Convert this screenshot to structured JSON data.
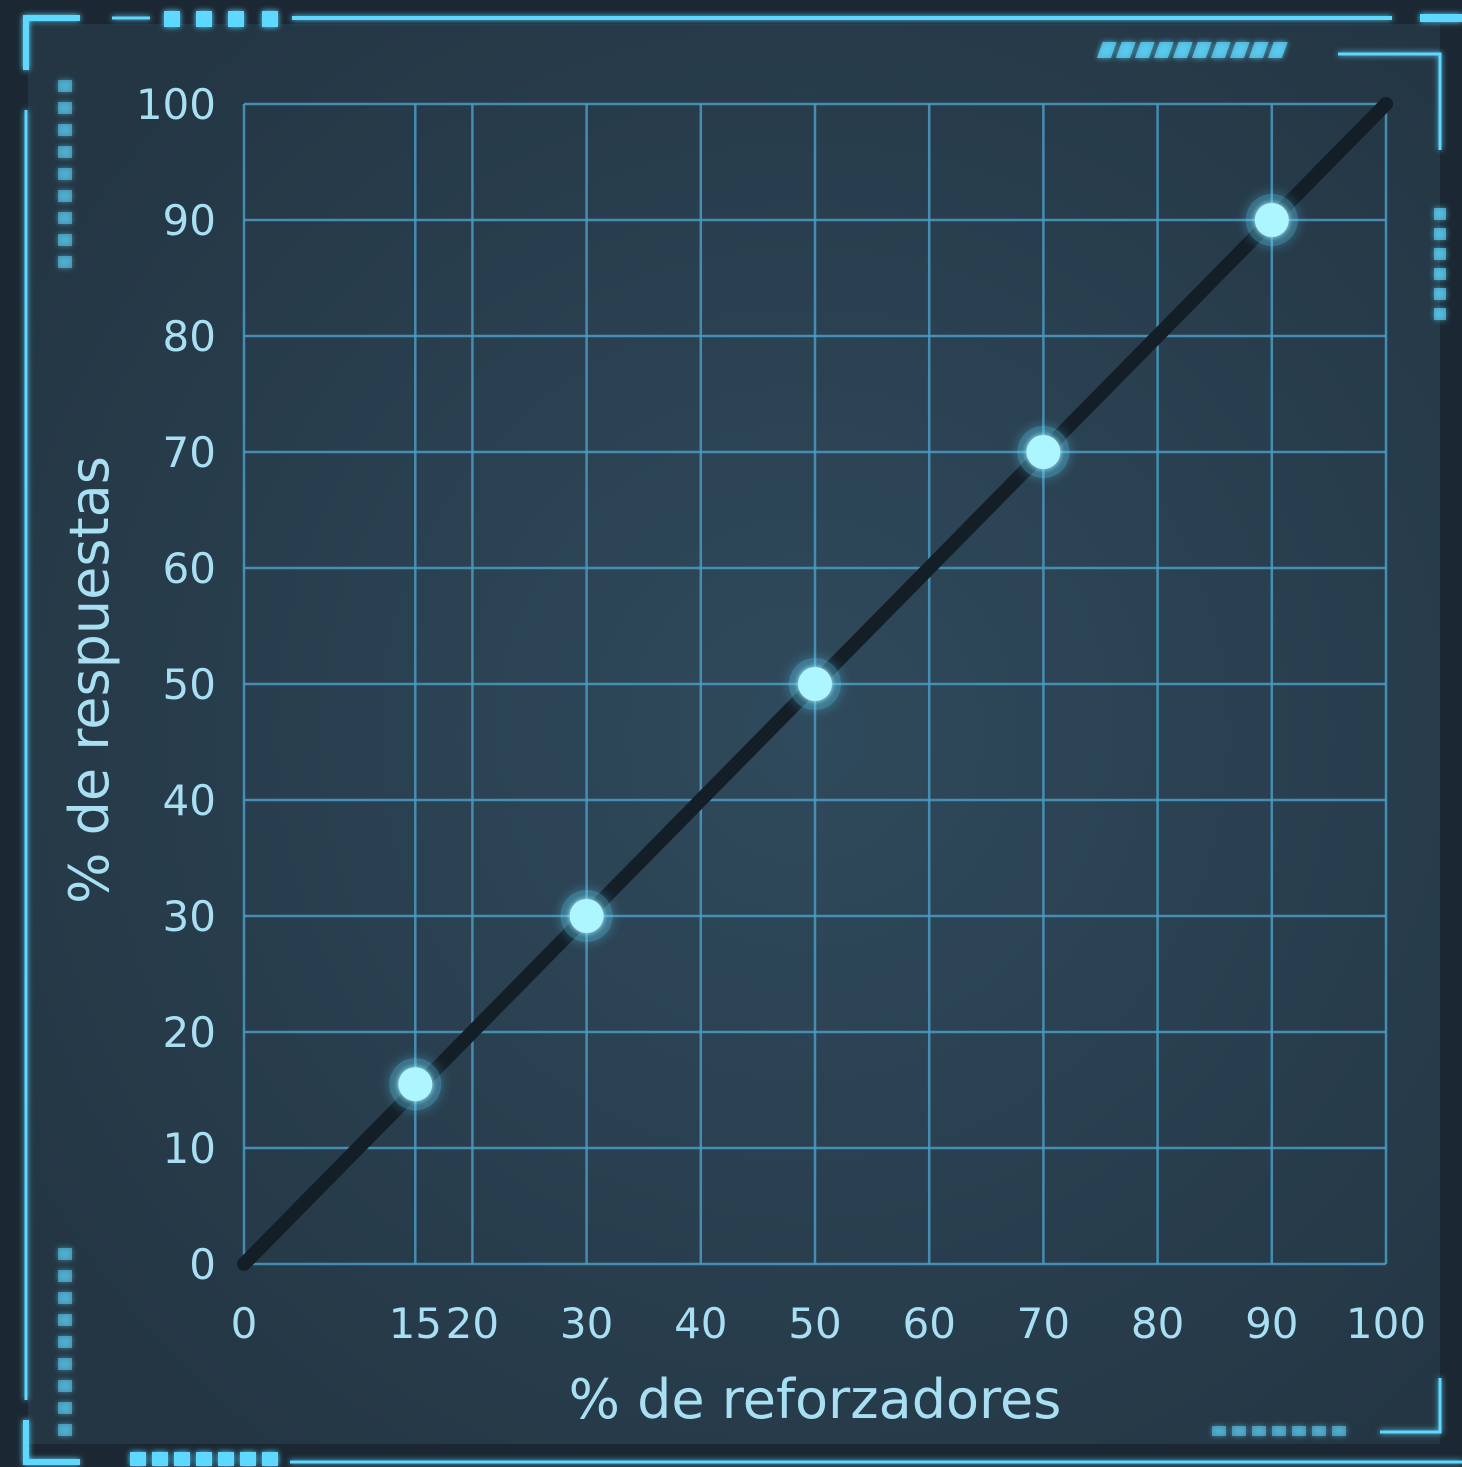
{
  "colors": {
    "background": "#1b2833",
    "panel": "#2a3f4f",
    "grid": "#4a9cc4",
    "axis": "#9fe8ff",
    "accent": "#5fd8ff",
    "text": "#a8dff2",
    "line": "#141e27",
    "point": "#aef6ff"
  },
  "chart_data": {
    "type": "scatter",
    "title": "",
    "xlabel": "% de reforzadores",
    "ylabel": "% de respuestas",
    "xlim": [
      0,
      100
    ],
    "ylim": [
      0,
      100
    ],
    "x_ticks": [
      0,
      15,
      20,
      30,
      40,
      50,
      60,
      70,
      80,
      90,
      100
    ],
    "x_tick_labels": [
      "0",
      "15",
      "20",
      "30",
      "40",
      "50",
      "60",
      "70",
      "80",
      "90",
      "100"
    ],
    "y_ticks": [
      0,
      10,
      20,
      30,
      40,
      50,
      60,
      70,
      80,
      90,
      100
    ],
    "y_tick_labels": [
      "0",
      "10",
      "20",
      "30",
      "40",
      "50",
      "60",
      "70",
      "80",
      "90",
      "100"
    ],
    "grid": true,
    "series": [
      {
        "points": [
          {
            "x": 15,
            "y": 15.5
          },
          {
            "x": 30,
            "y": 30
          },
          {
            "x": 50,
            "y": 50
          },
          {
            "x": 70,
            "y": 70
          },
          {
            "x": 90,
            "y": 90
          }
        ]
      }
    ],
    "reference_line": {
      "from": [
        0,
        0
      ],
      "to": [
        100,
        100
      ]
    }
  }
}
